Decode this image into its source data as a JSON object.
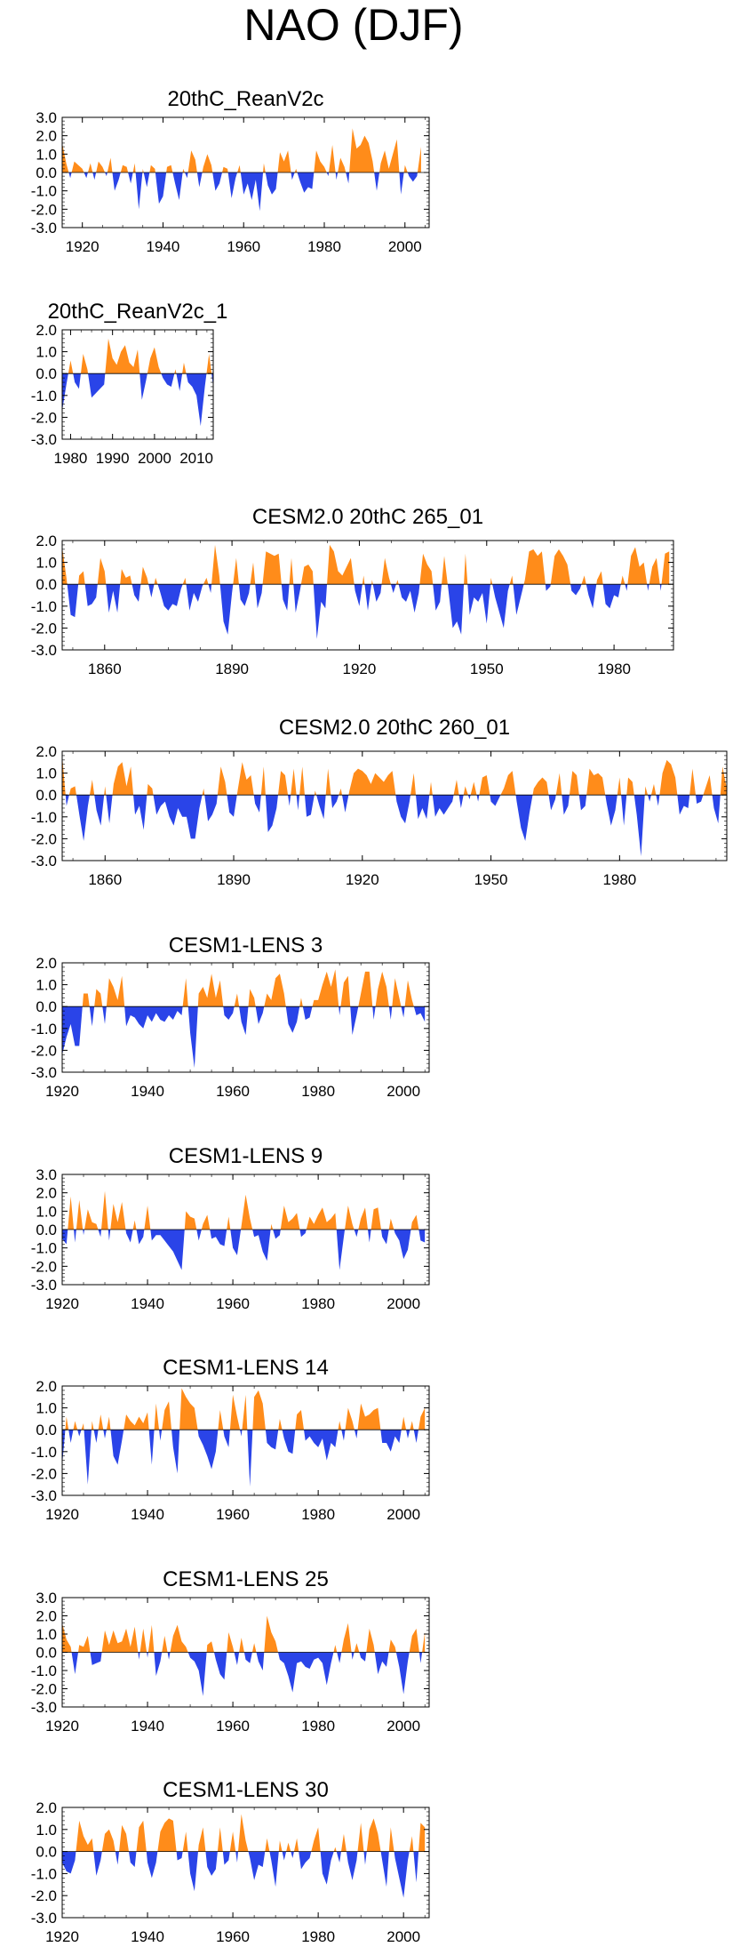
{
  "title": "NAO (DJF)",
  "colors": {
    "positive": "#ff8c1a",
    "negative": "#2a44e8",
    "axis": "#000000"
  },
  "chart_data": [
    {
      "type": "area",
      "title": "20thC_ReanV2c",
      "xlim": [
        1915,
        2006
      ],
      "ylim": [
        -3.0,
        3.0
      ],
      "yticks": [
        "3.0",
        "2.0",
        "1.0",
        "0.0",
        "-1.0",
        "-2.0",
        "-3.0"
      ],
      "xticks": [
        {
          "value": 1920,
          "label": "1920"
        },
        {
          "value": 1940,
          "label": "1940"
        },
        {
          "value": 1960,
          "label": "1960"
        },
        {
          "value": 1980,
          "label": "1980"
        },
        {
          "value": 2000,
          "label": "2000"
        }
      ],
      "x_start": 1915,
      "values": [
        1.6,
        0.5,
        -0.3,
        0.6,
        0.4,
        0.2,
        -0.3,
        0.5,
        -0.4,
        0.6,
        0.3,
        -0.2,
        0.8,
        -1.0,
        -0.4,
        0.4,
        0.3,
        -0.6,
        0.5,
        -2.0,
        0.2,
        -0.8,
        0.4,
        0.2,
        -1.7,
        -1.3,
        0.3,
        0.4,
        -0.6,
        -1.5,
        0.2,
        -0.3,
        1.2,
        0.7,
        -0.8,
        0.3,
        1.0,
        0.4,
        -1.0,
        -0.6,
        0.3,
        0.2,
        -1.4,
        -0.3,
        0.4,
        -1.2,
        -0.6,
        -1.5,
        -0.4,
        -2.1,
        0.5,
        -0.7,
        -1.2,
        -0.9,
        1.1,
        0.6,
        1.2,
        -0.4,
        0.2,
        -0.5,
        -1.1,
        -0.8,
        -0.9,
        1.2,
        0.6,
        0.3,
        -0.2,
        1.5,
        -0.4,
        0.8,
        0.3,
        -0.6,
        2.4,
        1.3,
        1.5,
        2.0,
        1.6,
        0.6,
        -1.0,
        0.5,
        1.2,
        0.2,
        1.0,
        1.8,
        -1.2,
        0.4,
        -0.2,
        -0.5,
        -0.2,
        1.4
      ]
    },
    {
      "type": "area",
      "title": "20thC_ReanV2c_1",
      "xlim": [
        1978,
        2014
      ],
      "ylim": [
        -3.0,
        2.0
      ],
      "yticks": [
        "2.0",
        "1.0",
        "0.0",
        "-1.0",
        "-2.0",
        "-3.0"
      ],
      "xticks": [
        {
          "value": 1980,
          "label": "1980"
        },
        {
          "value": 1990,
          "label": "1990"
        },
        {
          "value": 2000,
          "label": "2000"
        },
        {
          "value": 2010,
          "label": "2010"
        }
      ],
      "x_start": 1978,
      "values": [
        -1.7,
        -0.5,
        0.6,
        -0.4,
        -0.7,
        0.9,
        0.2,
        -1.1,
        -0.9,
        -0.7,
        -0.5,
        1.6,
        0.7,
        0.4,
        1.0,
        1.3,
        0.5,
        0.3,
        1.1,
        -1.2,
        -0.3,
        0.7,
        1.2,
        0.3,
        -0.2,
        -0.5,
        -0.6,
        0.2,
        -0.8,
        0.5,
        -0.4,
        -0.6,
        -1.0,
        -2.4,
        -0.6,
        0.9,
        -0.6,
        1.0
      ]
    },
    {
      "type": "area",
      "title": "CESM2.0 20thC 265_01",
      "xlim": [
        1850,
        1994
      ],
      "ylim": [
        -3.0,
        2.0
      ],
      "yticks": [
        "2.0",
        "1.0",
        "0.0",
        "-1.0",
        "-2.0",
        "-3.0"
      ],
      "xticks": [
        {
          "value": 1860,
          "label": "1860"
        },
        {
          "value": 1890,
          "label": "1890"
        },
        {
          "value": 1920,
          "label": "1920"
        },
        {
          "value": 1950,
          "label": "1950"
        },
        {
          "value": 1980,
          "label": "1980"
        }
      ],
      "x_start": 1850,
      "values": [
        1.7,
        0.3,
        -1.4,
        -1.5,
        0.4,
        0.6,
        -1.0,
        -0.9,
        -0.6,
        1.2,
        0.6,
        -1.3,
        -0.3,
        -1.3,
        0.7,
        0.3,
        0.4,
        -0.5,
        -0.8,
        0.8,
        0.3,
        -0.6,
        0.3,
        -0.3,
        -1.0,
        -1.2,
        -0.9,
        -1.0,
        -0.2,
        0.3,
        -1.2,
        -0.4,
        -0.8,
        -0.1,
        0.3,
        -0.4,
        1.8,
        0.4,
        -1.7,
        -2.3,
        -0.4,
        1.2,
        -0.7,
        -1.0,
        -0.4,
        1.0,
        -1.1,
        -0.4,
        1.5,
        1.4,
        1.3,
        1.4,
        -0.7,
        -1.2,
        1.2,
        -1.3,
        -0.3,
        0.8,
        0.9,
        0.6,
        -2.5,
        -0.8,
        -1.1,
        1.8,
        1.5,
        0.6,
        0.4,
        0.8,
        1.2,
        -0.3,
        -1.0,
        0.4,
        -1.2,
        0.2,
        -0.8,
        -0.4,
        1.2,
        0.3,
        -0.4,
        0.2,
        -0.6,
        -0.8,
        -0.3,
        -1.3,
        -0.4,
        1.4,
        0.9,
        0.6,
        -1.2,
        -0.8,
        1.3,
        -0.3,
        -2.0,
        -1.7,
        -2.3,
        1.4,
        -1.4,
        -0.6,
        -0.8,
        -0.4,
        -1.8,
        0.3,
        -0.6,
        -1.3,
        -2.0,
        -0.3,
        0.4,
        -1.4,
        -0.6,
        0.2,
        1.5,
        1.6,
        1.3,
        1.5,
        -0.3,
        -0.1,
        1.3,
        1.6,
        1.3,
        0.9,
        -0.3,
        -0.5,
        -0.2,
        0.4,
        -0.5,
        -1.1,
        0.2,
        0.6,
        -0.9,
        -1.1,
        -0.5,
        -0.6,
        0.4,
        -0.3,
        1.3,
        1.7,
        0.8,
        1.0,
        -0.3,
        0.8,
        1.2,
        -0.3,
        1.4,
        1.5
      ]
    },
    {
      "type": "area",
      "title": "CESM2.0 20thC 260_01",
      "xlim": [
        1850,
        2005
      ],
      "ylim": [
        -3.0,
        2.0
      ],
      "yticks": [
        "2.0",
        "1.0",
        "0.0",
        "-1.0",
        "-2.0",
        "-3.0"
      ],
      "xticks": [
        {
          "value": 1860,
          "label": "1860"
        },
        {
          "value": 1890,
          "label": "1890"
        },
        {
          "value": 1920,
          "label": "1920"
        },
        {
          "value": 1950,
          "label": "1950"
        },
        {
          "value": 1980,
          "label": "1980"
        }
      ],
      "x_start": 1850,
      "values": [
        1.8,
        -0.5,
        0.3,
        0.4,
        -0.9,
        -2.1,
        -0.5,
        0.7,
        -0.7,
        -1.4,
        0.4,
        -1.3,
        0.5,
        1.3,
        1.5,
        0.4,
        1.3,
        -0.9,
        -0.5,
        -1.6,
        0.5,
        0.3,
        -0.9,
        -0.5,
        -0.3,
        -1.0,
        -1.4,
        -0.6,
        -1.0,
        -1.0,
        -2.0,
        -2.0,
        -0.6,
        0.3,
        -1.2,
        -0.9,
        -0.4,
        1.3,
        0.6,
        -0.8,
        -1.0,
        0.3,
        1.5,
        0.7,
        0.9,
        -0.4,
        -0.8,
        1.3,
        -1.7,
        -1.4,
        -0.6,
        1.1,
        0.9,
        -0.5,
        1.2,
        -0.7,
        1.3,
        -1.0,
        -0.9,
        0.2,
        -0.5,
        -1.1,
        1.2,
        -0.6,
        -0.3,
        0.3,
        -0.8,
        0.2,
        1.0,
        1.2,
        1.1,
        0.9,
        0.5,
        1.0,
        0.8,
        0.6,
        0.9,
        1.1,
        -0.3,
        -1.0,
        -1.3,
        -0.3,
        1.0,
        -1.1,
        -0.6,
        -1.1,
        0.6,
        -1.0,
        -0.6,
        -0.9,
        -0.6,
        -0.3,
        0.7,
        -0.6,
        0.4,
        -0.2,
        0.6,
        -0.3,
        0.8,
        0.9,
        -0.3,
        -0.5,
        -0.1,
        0.3,
        0.9,
        1.1,
        -0.3,
        -1.5,
        -2.1,
        -0.8,
        0.3,
        0.6,
        0.8,
        0.6,
        -0.7,
        -0.2,
        1.0,
        -0.9,
        -0.5,
        1.1,
        0.9,
        -0.7,
        -0.5,
        1.2,
        0.9,
        1.0,
        0.8,
        -0.4,
        -1.4,
        -0.7,
        0.8,
        -1.4,
        0.8,
        0.6,
        -0.9,
        -2.8,
        0.4,
        -0.3,
        0.5,
        -0.5,
        1.0,
        1.6,
        1.4,
        0.8,
        -0.9,
        -0.5,
        -0.6,
        1.2,
        -0.4,
        -0.3,
        0.3,
        0.9,
        -0.6,
        -1.3,
        1.3,
        0.3,
        -0.9,
        -1.4
      ]
    },
    {
      "type": "area",
      "title": "CESM1-LENS 3",
      "xlim": [
        1920,
        2006
      ],
      "ylim": [
        -3.0,
        2.0
      ],
      "yticks": [
        "2.0",
        "1.0",
        "0.0",
        "-1.0",
        "-2.0",
        "-3.0"
      ],
      "xticks": [
        {
          "value": 1920,
          "label": "1920"
        },
        {
          "value": 1940,
          "label": "1940"
        },
        {
          "value": 1960,
          "label": "1960"
        },
        {
          "value": 1980,
          "label": "1980"
        },
        {
          "value": 2000,
          "label": "2000"
        }
      ],
      "x_start": 1920,
      "values": [
        -2.2,
        -1.4,
        -0.8,
        -1.8,
        -1.8,
        0.6,
        0.6,
        -0.9,
        0.8,
        0.6,
        -0.8,
        1.3,
        0.9,
        0.3,
        1.4,
        -0.9,
        -0.4,
        -0.5,
        -0.8,
        -1.0,
        -0.4,
        -0.7,
        -0.3,
        -0.6,
        -0.7,
        -0.4,
        -0.6,
        -0.2,
        -0.4,
        1.3,
        -1.2,
        -2.8,
        0.6,
        0.9,
        0.4,
        1.5,
        0.4,
        1.2,
        -0.4,
        -0.6,
        -0.3,
        0.6,
        -0.7,
        -1.3,
        0.8,
        0.4,
        -0.8,
        -0.3,
        0.6,
        0.3,
        1.3,
        1.5,
        0.6,
        -0.8,
        -1.2,
        -0.7,
        0.4,
        -0.6,
        -0.5,
        0.3,
        0.3,
        1.0,
        1.6,
        0.9,
        1.7,
        -0.4,
        1.1,
        1.4,
        -1.3,
        -0.4,
        0.6,
        1.6,
        1.6,
        -0.6,
        0.8,
        1.6,
        0.9,
        -0.6,
        1.3,
        0.4,
        -0.5,
        1.2,
        0.3,
        -0.4,
        -0.3,
        -0.7
      ]
    },
    {
      "type": "area",
      "title": "CESM1-LENS 9",
      "xlim": [
        1920,
        2006
      ],
      "ylim": [
        -3.0,
        3.0
      ],
      "yticks": [
        "3.0",
        "2.0",
        "1.0",
        "0.0",
        "-1.0",
        "-2.0",
        "-3.0"
      ],
      "xticks": [
        {
          "value": 1920,
          "label": "1920"
        },
        {
          "value": 1940,
          "label": "1940"
        },
        {
          "value": 1960,
          "label": "1960"
        },
        {
          "value": 1980,
          "label": "1980"
        },
        {
          "value": 2000,
          "label": "2000"
        }
      ],
      "x_start": 1920,
      "values": [
        -0.5,
        -0.8,
        1.8,
        -0.7,
        1.6,
        -0.3,
        1.1,
        0.4,
        0.3,
        -0.4,
        2.1,
        -0.6,
        1.4,
        0.4,
        1.5,
        -0.2,
        -0.7,
        0.5,
        -0.8,
        -0.4,
        1.3,
        -0.6,
        -0.3,
        -0.3,
        -0.6,
        -0.9,
        -1.2,
        -1.7,
        -2.2,
        1.0,
        0.7,
        0.6,
        -0.6,
        0.3,
        0.8,
        -0.5,
        -0.4,
        -0.8,
        -0.9,
        0.7,
        -1.0,
        -1.4,
        0.2,
        1.9,
        0.6,
        -0.4,
        -0.3,
        -1.2,
        -1.7,
        0.3,
        -0.5,
        -0.3,
        1.3,
        0.4,
        0.6,
        0.9,
        -0.4,
        -0.2,
        0.7,
        0.3,
        0.8,
        1.2,
        0.4,
        0.6,
        0.9,
        -2.2,
        -0.4,
        1.3,
        0.3,
        -0.4,
        0.6,
        1.2,
        -0.7,
        1.1,
        1.2,
        -0.4,
        -0.8,
        0.6,
        -0.2,
        -0.6,
        -1.6,
        -1.1,
        0.4,
        0.8,
        -0.6,
        -0.7
      ]
    },
    {
      "type": "area",
      "title": "CESM1-LENS 14",
      "xlim": [
        1920,
        2006
      ],
      "ylim": [
        -3.0,
        2.0
      ],
      "yticks": [
        "2.0",
        "1.0",
        "0.0",
        "-1.0",
        "-2.0",
        "-3.0"
      ],
      "xticks": [
        {
          "value": 1920,
          "label": "1920"
        },
        {
          "value": 1940,
          "label": "1940"
        },
        {
          "value": 1960,
          "label": "1960"
        },
        {
          "value": 1980,
          "label": "1980"
        },
        {
          "value": 2000,
          "label": "2000"
        }
      ],
      "x_start": 1920,
      "values": [
        -1.6,
        0.6,
        -0.6,
        0.4,
        -0.3,
        0.3,
        -2.5,
        0.4,
        -0.6,
        0.7,
        -0.4,
        0.6,
        -1.2,
        -1.6,
        -0.5,
        0.7,
        0.4,
        0.2,
        0.6,
        0.3,
        0.8,
        -1.6,
        1.2,
        -0.5,
        0.9,
        1.3,
        -0.8,
        -2.0,
        1.9,
        1.5,
        1.2,
        1.0,
        -0.3,
        -0.7,
        -1.2,
        -1.8,
        -1.0,
        0.9,
        -0.3,
        -0.8,
        1.6,
        0.6,
        -0.3,
        1.6,
        -2.6,
        1.5,
        1.8,
        1.2,
        -0.6,
        -0.8,
        -0.9,
        0.5,
        -0.4,
        -1.0,
        -1.1,
        0.7,
        0.9,
        -0.5,
        -0.3,
        -0.6,
        -0.8,
        -0.4,
        -1.4,
        -0.6,
        -0.8,
        0.4,
        -0.5,
        1.0,
        0.4,
        -0.4,
        1.2,
        0.6,
        0.7,
        0.9,
        1.0,
        -0.6,
        -0.6,
        -1.0,
        -0.3,
        -0.6,
        0.6,
        -0.4,
        0.4,
        -0.6,
        0.6,
        1.0
      ]
    },
    {
      "type": "area",
      "title": "CESM1-LENS 25",
      "xlim": [
        1920,
        2006
      ],
      "ylim": [
        -3.0,
        3.0
      ],
      "yticks": [
        "3.0",
        "2.0",
        "1.0",
        "0.0",
        "-1.0",
        "-2.0",
        "-3.0"
      ],
      "xticks": [
        {
          "value": 1920,
          "label": "1920"
        },
        {
          "value": 1940,
          "label": "1940"
        },
        {
          "value": 1960,
          "label": "1960"
        },
        {
          "value": 1980,
          "label": "1980"
        },
        {
          "value": 2000,
          "label": "2000"
        }
      ],
      "x_start": 1920,
      "values": [
        1.6,
        0.7,
        0.3,
        -1.2,
        0.4,
        0.3,
        0.9,
        -0.7,
        -0.6,
        -0.5,
        1.2,
        0.4,
        1.2,
        0.5,
        0.6,
        1.3,
        0.3,
        1.4,
        -0.4,
        1.3,
        -0.3,
        1.5,
        -1.3,
        -0.5,
        0.9,
        -0.4,
        0.9,
        1.5,
        0.6,
        0.3,
        -0.3,
        -0.5,
        -1.0,
        -2.4,
        0.4,
        0.6,
        -0.4,
        -1.2,
        -1.5,
        1.1,
        0.3,
        -0.7,
        0.8,
        -0.4,
        -0.6,
        0.5,
        -0.5,
        -1.0,
        2.0,
        1.1,
        0.6,
        -0.4,
        -0.6,
        -1.3,
        -2.2,
        -0.6,
        -0.5,
        -0.8,
        -0.9,
        -0.4,
        -0.3,
        -0.6,
        -1.8,
        -0.6,
        0.4,
        -0.6,
        0.7,
        1.6,
        -0.4,
        0.5,
        -0.3,
        -0.5,
        1.3,
        0.4,
        -1.2,
        -0.5,
        -0.8,
        0.7,
        0.3,
        -0.8,
        -2.3,
        -0.5,
        0.9,
        1.3,
        -0.6,
        1.1
      ]
    },
    {
      "type": "area",
      "title": "CESM1-LENS 30",
      "xlim": [
        1920,
        2006
      ],
      "ylim": [
        -3.0,
        2.0
      ],
      "yticks": [
        "2.0",
        "1.0",
        "0.0",
        "-1.0",
        "-2.0",
        "-3.0"
      ],
      "xticks": [
        {
          "value": 1920,
          "label": "1920"
        },
        {
          "value": 1940,
          "label": "1940"
        },
        {
          "value": 1960,
          "label": "1960"
        },
        {
          "value": 1980,
          "label": "1980"
        },
        {
          "value": 2000,
          "label": "2000"
        }
      ],
      "x_start": 1920,
      "values": [
        -0.5,
        -0.9,
        -1.0,
        -0.4,
        1.4,
        0.7,
        0.3,
        0.6,
        -1.1,
        -0.4,
        0.8,
        1.0,
        0.5,
        -0.6,
        1.2,
        0.8,
        -0.5,
        -0.7,
        1.1,
        1.4,
        -0.5,
        -1.2,
        -0.5,
        0.9,
        1.3,
        1.5,
        1.4,
        -0.4,
        -0.3,
        0.9,
        -1.0,
        -1.8,
        0.3,
        1.1,
        -0.7,
        -1.1,
        -0.8,
        1.1,
        -0.6,
        -0.4,
        0.9,
        -0.5,
        1.7,
        0.5,
        -0.3,
        -1.3,
        -0.6,
        -0.7,
        0.6,
        -0.4,
        -1.6,
        0.5,
        -0.4,
        0.4,
        -0.3,
        0.6,
        -0.8,
        -0.5,
        -0.3,
        0.5,
        1.1,
        -1.0,
        -1.5,
        -0.4,
        0.2,
        -0.5,
        0.8,
        -0.5,
        -1.3,
        -0.4,
        1.3,
        -0.6,
        1.0,
        1.5,
        0.8,
        -0.4,
        -1.6,
        1.1,
        -0.3,
        -1.2,
        -2.1,
        -0.4,
        0.7,
        -1.4,
        1.3,
        1.1
      ]
    }
  ]
}
